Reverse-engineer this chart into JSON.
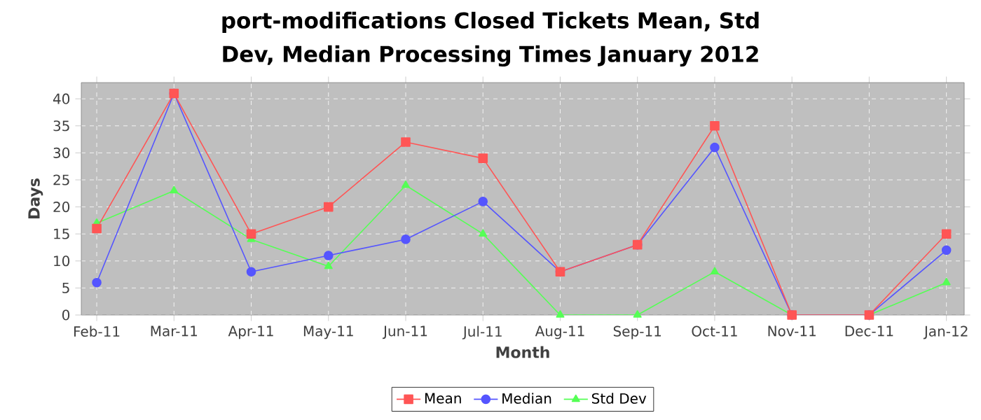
{
  "chart_data": {
    "type": "line",
    "title": "port-modifications Closed Tickets Mean, Std Dev, Median Processing Times January 2012",
    "xlabel": "Month",
    "ylabel": "Days",
    "categories": [
      "Feb-11",
      "Mar-11",
      "Apr-11",
      "May-11",
      "Jun-11",
      "Jul-11",
      "Aug-11",
      "Sep-11",
      "Oct-11",
      "Nov-11",
      "Dec-11",
      "Jan-12"
    ],
    "series": [
      {
        "name": "Mean",
        "color": "#ff5555",
        "marker": "square",
        "values": [
          16,
          41,
          15,
          20,
          32,
          29,
          8,
          13,
          35,
          0,
          0,
          15
        ]
      },
      {
        "name": "Median",
        "color": "#5555ff",
        "marker": "circle",
        "values": [
          6,
          41,
          8,
          11,
          14,
          21,
          8,
          13,
          31,
          0,
          0,
          12
        ]
      },
      {
        "name": "Std Dev",
        "color": "#55ff55",
        "marker": "triangle",
        "values": [
          17,
          23,
          14,
          9,
          24,
          15,
          0,
          0,
          8,
          0,
          0,
          6
        ]
      }
    ],
    "ylim": [
      0,
      43
    ],
    "yticks": [
      0,
      5,
      10,
      15,
      20,
      25,
      30,
      35,
      40
    ],
    "grid": true,
    "legend": "bottom",
    "line_style": "solid"
  }
}
